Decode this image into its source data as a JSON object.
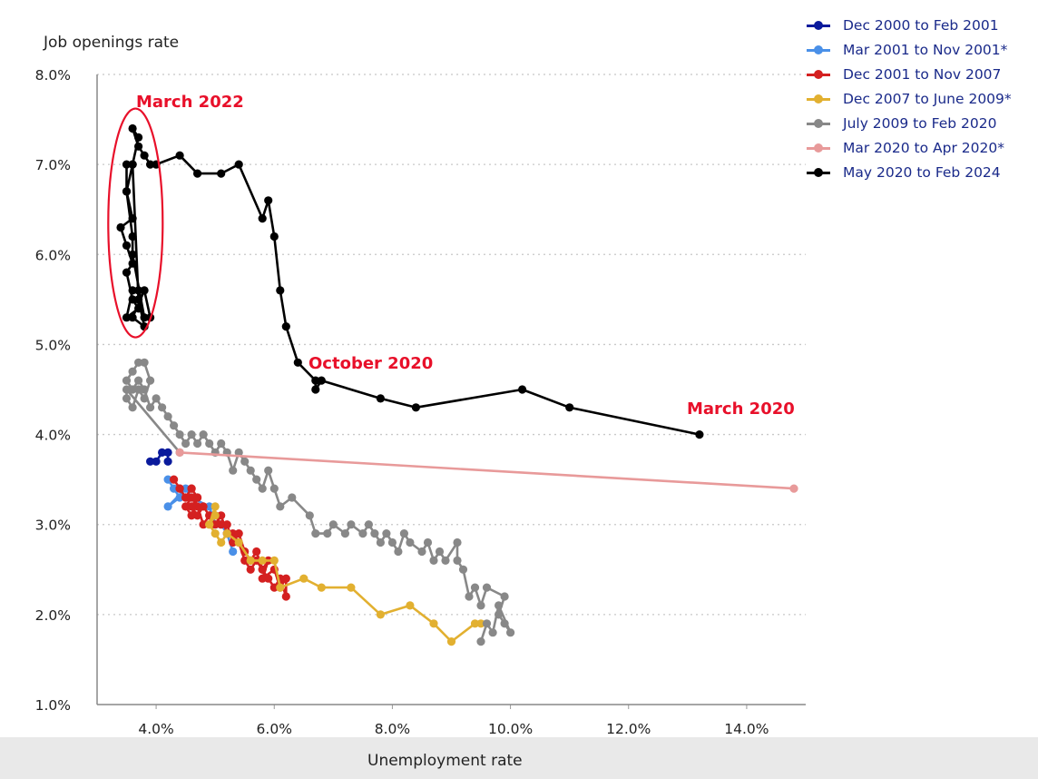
{
  "chart_data": {
    "type": "line",
    "xlabel": "Unemployment rate",
    "ylabel": "Job openings rate",
    "xlim": [
      3.0,
      15.0
    ],
    "ylim": [
      1.0,
      8.0
    ],
    "x_ticks": [
      "4.0%",
      "6.0%",
      "8.0%",
      "10.0%",
      "12.0%",
      "14.0%"
    ],
    "x_tick_values": [
      4,
      6,
      8,
      10,
      12,
      14
    ],
    "y_ticks": [
      "1.0%",
      "2.0%",
      "3.0%",
      "4.0%",
      "5.0%",
      "6.0%",
      "7.0%",
      "8.0%"
    ],
    "y_tick_values": [
      1,
      2,
      3,
      4,
      5,
      6,
      7,
      8
    ],
    "grid": "horizontal dotted",
    "legend_position": "top-right",
    "series": [
      {
        "name": "Dec 2000 to Feb 2001",
        "color": "#0a1a9c",
        "points": [
          [
            3.9,
            3.7
          ],
          [
            4.0,
            3.7
          ],
          [
            4.1,
            3.8
          ],
          [
            4.2,
            3.8
          ],
          [
            4.2,
            3.7
          ]
        ]
      },
      {
        "name": "Mar 2001 to Nov 2001*",
        "color": "#4a90e8",
        "points": [
          [
            4.2,
            3.5
          ],
          [
            4.3,
            3.4
          ],
          [
            4.4,
            3.3
          ],
          [
            4.2,
            3.2
          ],
          [
            4.5,
            3.4
          ],
          [
            4.6,
            3.3
          ],
          [
            4.9,
            3.2
          ],
          [
            5.0,
            3.0
          ],
          [
            5.1,
            3.0
          ],
          [
            5.2,
            2.9
          ],
          [
            5.3,
            2.7
          ]
        ]
      },
      {
        "name": "Dec 2001 to Nov 2007",
        "color": "#d42020",
        "points": [
          [
            4.3,
            3.5
          ],
          [
            4.4,
            3.4
          ],
          [
            4.5,
            3.3
          ],
          [
            4.6,
            3.4
          ],
          [
            4.7,
            3.3
          ],
          [
            4.6,
            3.2
          ],
          [
            4.7,
            3.1
          ],
          [
            4.8,
            3.2
          ],
          [
            4.9,
            3.1
          ],
          [
            5.0,
            3.1
          ],
          [
            5.1,
            3.0
          ],
          [
            5.2,
            3.0
          ],
          [
            5.3,
            2.8
          ],
          [
            5.4,
            2.9
          ],
          [
            5.5,
            2.7
          ],
          [
            5.6,
            2.6
          ],
          [
            5.7,
            2.7
          ],
          [
            5.8,
            2.5
          ],
          [
            5.9,
            2.6
          ],
          [
            5.8,
            2.4
          ],
          [
            6.0,
            2.5
          ],
          [
            6.1,
            2.3
          ],
          [
            6.2,
            2.4
          ],
          [
            6.2,
            2.2
          ],
          [
            6.1,
            2.4
          ],
          [
            6.0,
            2.3
          ],
          [
            5.9,
            2.4
          ],
          [
            5.8,
            2.5
          ],
          [
            5.7,
            2.6
          ],
          [
            5.6,
            2.5
          ],
          [
            5.5,
            2.6
          ],
          [
            5.4,
            2.8
          ],
          [
            5.3,
            2.9
          ],
          [
            5.2,
            2.9
          ],
          [
            5.1,
            3.1
          ],
          [
            5.0,
            3.0
          ],
          [
            4.9,
            3.1
          ],
          [
            4.8,
            3.0
          ],
          [
            4.7,
            3.2
          ],
          [
            4.6,
            3.3
          ],
          [
            4.5,
            3.2
          ],
          [
            4.6,
            3.1
          ],
          [
            4.7,
            3.3
          ],
          [
            4.6,
            3.4
          ],
          [
            4.5,
            3.3
          ],
          [
            4.4,
            3.4
          ]
        ]
      },
      {
        "name": "Dec 2007 to June 2009*",
        "color": "#e2b030",
        "points": [
          [
            4.9,
            3.0
          ],
          [
            5.0,
            3.1
          ],
          [
            5.0,
            3.2
          ],
          [
            4.9,
            3.0
          ],
          [
            5.0,
            2.9
          ],
          [
            5.1,
            2.8
          ],
          [
            5.2,
            2.9
          ],
          [
            5.4,
            2.8
          ],
          [
            5.6,
            2.6
          ],
          [
            5.8,
            2.6
          ],
          [
            6.0,
            2.6
          ],
          [
            6.1,
            2.3
          ],
          [
            6.5,
            2.4
          ],
          [
            6.8,
            2.3
          ],
          [
            7.3,
            2.3
          ],
          [
            7.8,
            2.0
          ],
          [
            8.3,
            2.1
          ],
          [
            8.7,
            1.9
          ],
          [
            9.0,
            1.7
          ],
          [
            9.4,
            1.9
          ],
          [
            9.5,
            1.9
          ]
        ]
      },
      {
        "name": "July 2009 to Feb 2020",
        "color": "#888888",
        "points": [
          [
            9.5,
            1.7
          ],
          [
            9.6,
            1.9
          ],
          [
            9.7,
            1.8
          ],
          [
            9.8,
            2.1
          ],
          [
            10.0,
            1.8
          ],
          [
            9.9,
            1.9
          ],
          [
            9.8,
            2.0
          ],
          [
            9.9,
            2.2
          ],
          [
            9.6,
            2.3
          ],
          [
            9.5,
            2.1
          ],
          [
            9.4,
            2.3
          ],
          [
            9.3,
            2.2
          ],
          [
            9.2,
            2.5
          ],
          [
            9.1,
            2.6
          ],
          [
            9.1,
            2.8
          ],
          [
            8.9,
            2.6
          ],
          [
            8.8,
            2.7
          ],
          [
            8.7,
            2.6
          ],
          [
            8.6,
            2.8
          ],
          [
            8.5,
            2.7
          ],
          [
            8.3,
            2.8
          ],
          [
            8.2,
            2.9
          ],
          [
            8.1,
            2.7
          ],
          [
            8.0,
            2.8
          ],
          [
            7.9,
            2.9
          ],
          [
            7.8,
            2.8
          ],
          [
            7.7,
            2.9
          ],
          [
            7.6,
            3.0
          ],
          [
            7.5,
            2.9
          ],
          [
            7.3,
            3.0
          ],
          [
            7.2,
            2.9
          ],
          [
            7.0,
            3.0
          ],
          [
            6.9,
            2.9
          ],
          [
            6.7,
            2.9
          ],
          [
            6.6,
            3.1
          ],
          [
            6.3,
            3.3
          ],
          [
            6.1,
            3.2
          ],
          [
            6.0,
            3.4
          ],
          [
            5.9,
            3.6
          ],
          [
            5.8,
            3.4
          ],
          [
            5.7,
            3.5
          ],
          [
            5.6,
            3.6
          ],
          [
            5.5,
            3.7
          ],
          [
            5.4,
            3.8
          ],
          [
            5.3,
            3.6
          ],
          [
            5.2,
            3.8
          ],
          [
            5.1,
            3.9
          ],
          [
            5.0,
            3.8
          ],
          [
            4.9,
            3.9
          ],
          [
            4.8,
            4.0
          ],
          [
            4.7,
            3.9
          ],
          [
            4.6,
            4.0
          ],
          [
            4.5,
            3.9
          ],
          [
            4.4,
            4.0
          ],
          [
            4.3,
            4.1
          ],
          [
            4.2,
            4.2
          ],
          [
            4.1,
            4.3
          ],
          [
            4.0,
            4.4
          ],
          [
            3.9,
            4.3
          ],
          [
            3.8,
            4.5
          ],
          [
            3.7,
            4.6
          ],
          [
            3.6,
            4.5
          ],
          [
            3.5,
            4.6
          ],
          [
            3.6,
            4.7
          ],
          [
            3.7,
            4.8
          ],
          [
            3.8,
            4.8
          ],
          [
            3.9,
            4.6
          ],
          [
            3.8,
            4.4
          ],
          [
            3.7,
            4.5
          ],
          [
            3.6,
            4.3
          ],
          [
            3.5,
            4.4
          ],
          [
            3.5,
            4.5
          ],
          [
            4.4,
            3.8
          ]
        ]
      },
      {
        "name": "Mar 2020 to Apr 2020*",
        "color": "#e89a9a",
        "points": [
          [
            4.4,
            3.8
          ],
          [
            14.8,
            3.4
          ]
        ]
      },
      {
        "name": "May 2020 to Feb 2024",
        "color": "#000000",
        "points": [
          [
            13.2,
            4.0
          ],
          [
            11.0,
            4.3
          ],
          [
            10.2,
            4.5
          ],
          [
            8.4,
            4.3
          ],
          [
            7.8,
            4.4
          ],
          [
            6.8,
            4.6
          ],
          [
            6.7,
            4.5
          ],
          [
            6.7,
            4.6
          ],
          [
            6.4,
            4.8
          ],
          [
            6.2,
            5.2
          ],
          [
            6.1,
            5.6
          ],
          [
            6.0,
            6.2
          ],
          [
            5.9,
            6.6
          ],
          [
            5.8,
            6.4
          ],
          [
            5.4,
            7.0
          ],
          [
            5.1,
            6.9
          ],
          [
            4.7,
            6.9
          ],
          [
            4.4,
            7.1
          ],
          [
            4.0,
            7.0
          ],
          [
            3.9,
            7.0
          ],
          [
            3.8,
            7.1
          ],
          [
            3.7,
            7.2
          ],
          [
            3.6,
            7.4
          ],
          [
            3.7,
            7.3
          ],
          [
            3.6,
            7.0
          ],
          [
            3.5,
            6.7
          ],
          [
            3.6,
            6.4
          ],
          [
            3.4,
            6.3
          ],
          [
            3.5,
            6.1
          ],
          [
            3.6,
            5.9
          ],
          [
            3.5,
            5.8
          ],
          [
            3.6,
            5.5
          ],
          [
            3.7,
            5.4
          ],
          [
            3.5,
            5.3
          ],
          [
            3.6,
            5.6
          ],
          [
            3.7,
            5.6
          ],
          [
            3.8,
            5.3
          ],
          [
            3.6,
            6.0
          ],
          [
            3.6,
            6.2
          ],
          [
            3.5,
            6.7
          ],
          [
            3.5,
            7.0
          ],
          [
            3.6,
            7.0
          ],
          [
            3.7,
            5.5
          ],
          [
            3.8,
            5.2
          ],
          [
            3.6,
            5.3
          ],
          [
            3.8,
            5.6
          ],
          [
            3.9,
            5.3
          ]
        ]
      }
    ],
    "annotations": [
      {
        "text": "March 2022",
        "x": 3.65,
        "y": 6.35,
        "ellipse": true
      },
      {
        "text": "October 2020"
      },
      {
        "text": "March 2020"
      }
    ],
    "annotation_color": "#e8102a"
  }
}
